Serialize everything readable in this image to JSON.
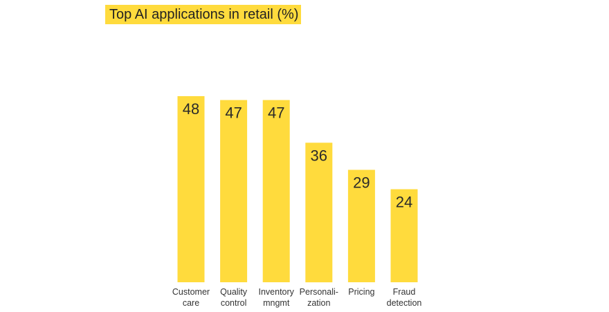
{
  "chart_data": {
    "type": "bar",
    "title": "Top AI applications in retail (%)",
    "categories": [
      [
        "Customer",
        "care"
      ],
      [
        "Quality",
        "control"
      ],
      [
        "Inventory",
        "mngmt"
      ],
      [
        "Personali-",
        "zation"
      ],
      [
        "Pricing"
      ],
      [
        "Fraud",
        "detection"
      ]
    ],
    "values": [
      48,
      47,
      47,
      36,
      29,
      24
    ],
    "ylim": [
      0,
      48
    ],
    "grid": false,
    "legend": "none"
  },
  "colors": {
    "bar": "#FFDB3D",
    "title_highlight": "#FFDB3D",
    "text": "#222222",
    "background": "#FFFFFF"
  }
}
